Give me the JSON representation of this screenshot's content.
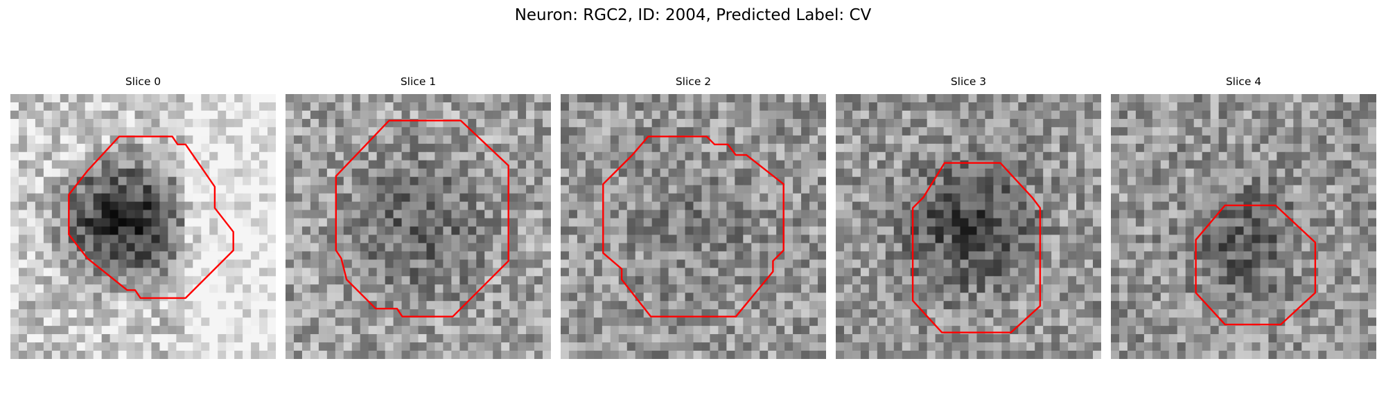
{
  "figure": {
    "title": "Neuron: RGC2, ID: 2004, Predicted Label: CV"
  },
  "colors": {
    "contour": "#ff0000",
    "background": "#ffffff"
  },
  "panels": [
    {
      "title": "Slice 0",
      "image": "grayscale-cell-patch",
      "overlay": "red-octagon-contour"
    },
    {
      "title": "Slice 1",
      "image": "grayscale-cell-patch",
      "overlay": "red-octagon-contour"
    },
    {
      "title": "Slice 2",
      "image": "grayscale-cell-patch",
      "overlay": "red-octagon-contour"
    },
    {
      "title": "Slice 3",
      "image": "grayscale-cell-patch",
      "overlay": "red-octagon-contour"
    },
    {
      "title": "Slice 4",
      "image": "grayscale-cell-patch",
      "overlay": "red-octagon-contour"
    }
  ]
}
